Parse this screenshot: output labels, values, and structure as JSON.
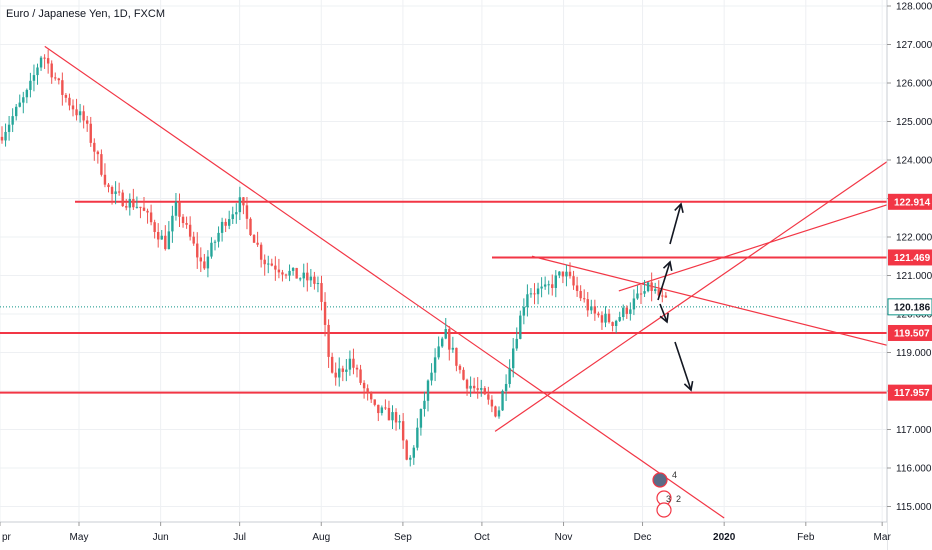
{
  "header": {
    "title": "Euro / Japanese Yen, 1D, FXCM"
  },
  "colors": {
    "up": "#26a69a",
    "down": "#ef5350",
    "drawing": "#f23645",
    "current_price": "#0d9488",
    "arrow": "#131722",
    "grid": "#eef0f3",
    "axis_text": "#131722"
  },
  "chart_data": {
    "type": "candlestick",
    "title": "Euro / Japanese Yen, 1D, FXCM",
    "symbol": "EURJPY",
    "timeframe": "1D",
    "source": "FXCM",
    "x_tick_labels": [
      "pr",
      "May",
      "Jun",
      "Jul",
      "Aug",
      "Sep",
      "Oct",
      "Nov",
      "Dec",
      "2020",
      "Feb",
      "Mar"
    ],
    "y_tick_labels": [
      "128.000",
      "127.000",
      "126.000",
      "125.000",
      "124.000",
      "123.000",
      "122.000",
      "121.000",
      "120.000",
      "119.000",
      "118.000",
      "117.000",
      "116.000",
      "115.000"
    ],
    "ylim": [
      114.7,
      128.2
    ],
    "grid": true,
    "price_path": [
      {
        "date": "2019-04-01",
        "close": 124.6
      },
      {
        "date": "2019-04-12",
        "close": 125.8
      },
      {
        "date": "2019-04-17",
        "close": 126.8
      },
      {
        "date": "2019-04-25",
        "close": 125.7
      },
      {
        "date": "2019-05-03",
        "close": 125.0
      },
      {
        "date": "2019-05-13",
        "close": 123.1
      },
      {
        "date": "2019-05-24",
        "close": 122.8
      },
      {
        "date": "2019-06-03",
        "close": 121.8
      },
      {
        "date": "2019-06-07",
        "close": 122.8
      },
      {
        "date": "2019-06-17",
        "close": 121.2
      },
      {
        "date": "2019-06-25",
        "close": 122.4
      },
      {
        "date": "2019-07-01",
        "close": 122.9
      },
      {
        "date": "2019-07-10",
        "close": 121.4
      },
      {
        "date": "2019-07-22",
        "close": 121.0
      },
      {
        "date": "2019-07-31",
        "close": 120.8
      },
      {
        "date": "2019-08-05",
        "close": 118.3
      },
      {
        "date": "2019-08-12",
        "close": 118.8
      },
      {
        "date": "2019-08-21",
        "close": 117.5
      },
      {
        "date": "2019-08-30",
        "close": 117.3
      },
      {
        "date": "2019-09-03",
        "close": 116.0
      },
      {
        "date": "2019-09-11",
        "close": 118.3
      },
      {
        "date": "2019-09-17",
        "close": 119.5
      },
      {
        "date": "2019-09-24",
        "close": 118.3
      },
      {
        "date": "2019-10-01",
        "close": 117.9
      },
      {
        "date": "2019-10-07",
        "close": 117.4
      },
      {
        "date": "2019-10-11",
        "close": 118.6
      },
      {
        "date": "2019-10-18",
        "close": 120.6
      },
      {
        "date": "2019-10-25",
        "close": 120.6
      },
      {
        "date": "2019-11-01",
        "close": 121.1
      },
      {
        "date": "2019-11-12",
        "close": 120.0
      },
      {
        "date": "2019-11-20",
        "close": 119.8
      },
      {
        "date": "2019-11-29",
        "close": 120.4
      },
      {
        "date": "2019-12-04",
        "close": 120.7
      },
      {
        "date": "2019-12-11",
        "close": 120.186
      }
    ],
    "horizontal_levels": [
      {
        "label": "122.914",
        "value": 122.914
      },
      {
        "label": "121.469",
        "value": 121.469
      },
      {
        "label": "119.507",
        "value": 119.507
      },
      {
        "label": "117.957",
        "value": 117.957
      }
    ],
    "current_price": {
      "label": "120.186",
      "value": 120.186
    },
    "trend_lines": [
      {
        "from": {
          "date": "2019-04-18",
          "price": 126.95
        },
        "to": {
          "date": "2020-01-01",
          "price": 114.7
        }
      },
      {
        "from": {
          "date": "2019-10-06",
          "price": 116.95
        },
        "to": {
          "date": "2020-03-08",
          "price": 124.2
        }
      },
      {
        "from": {
          "date": "2019-11-22",
          "price": 120.6
        },
        "to": {
          "date": "2020-03-08",
          "price": 122.95
        }
      },
      {
        "from": {
          "date": "2019-10-20",
          "price": 121.5
        },
        "to": {
          "date": "2020-03-08",
          "price": 119.1
        }
      }
    ],
    "event_markers": [
      "4",
      "3",
      "2"
    ]
  }
}
